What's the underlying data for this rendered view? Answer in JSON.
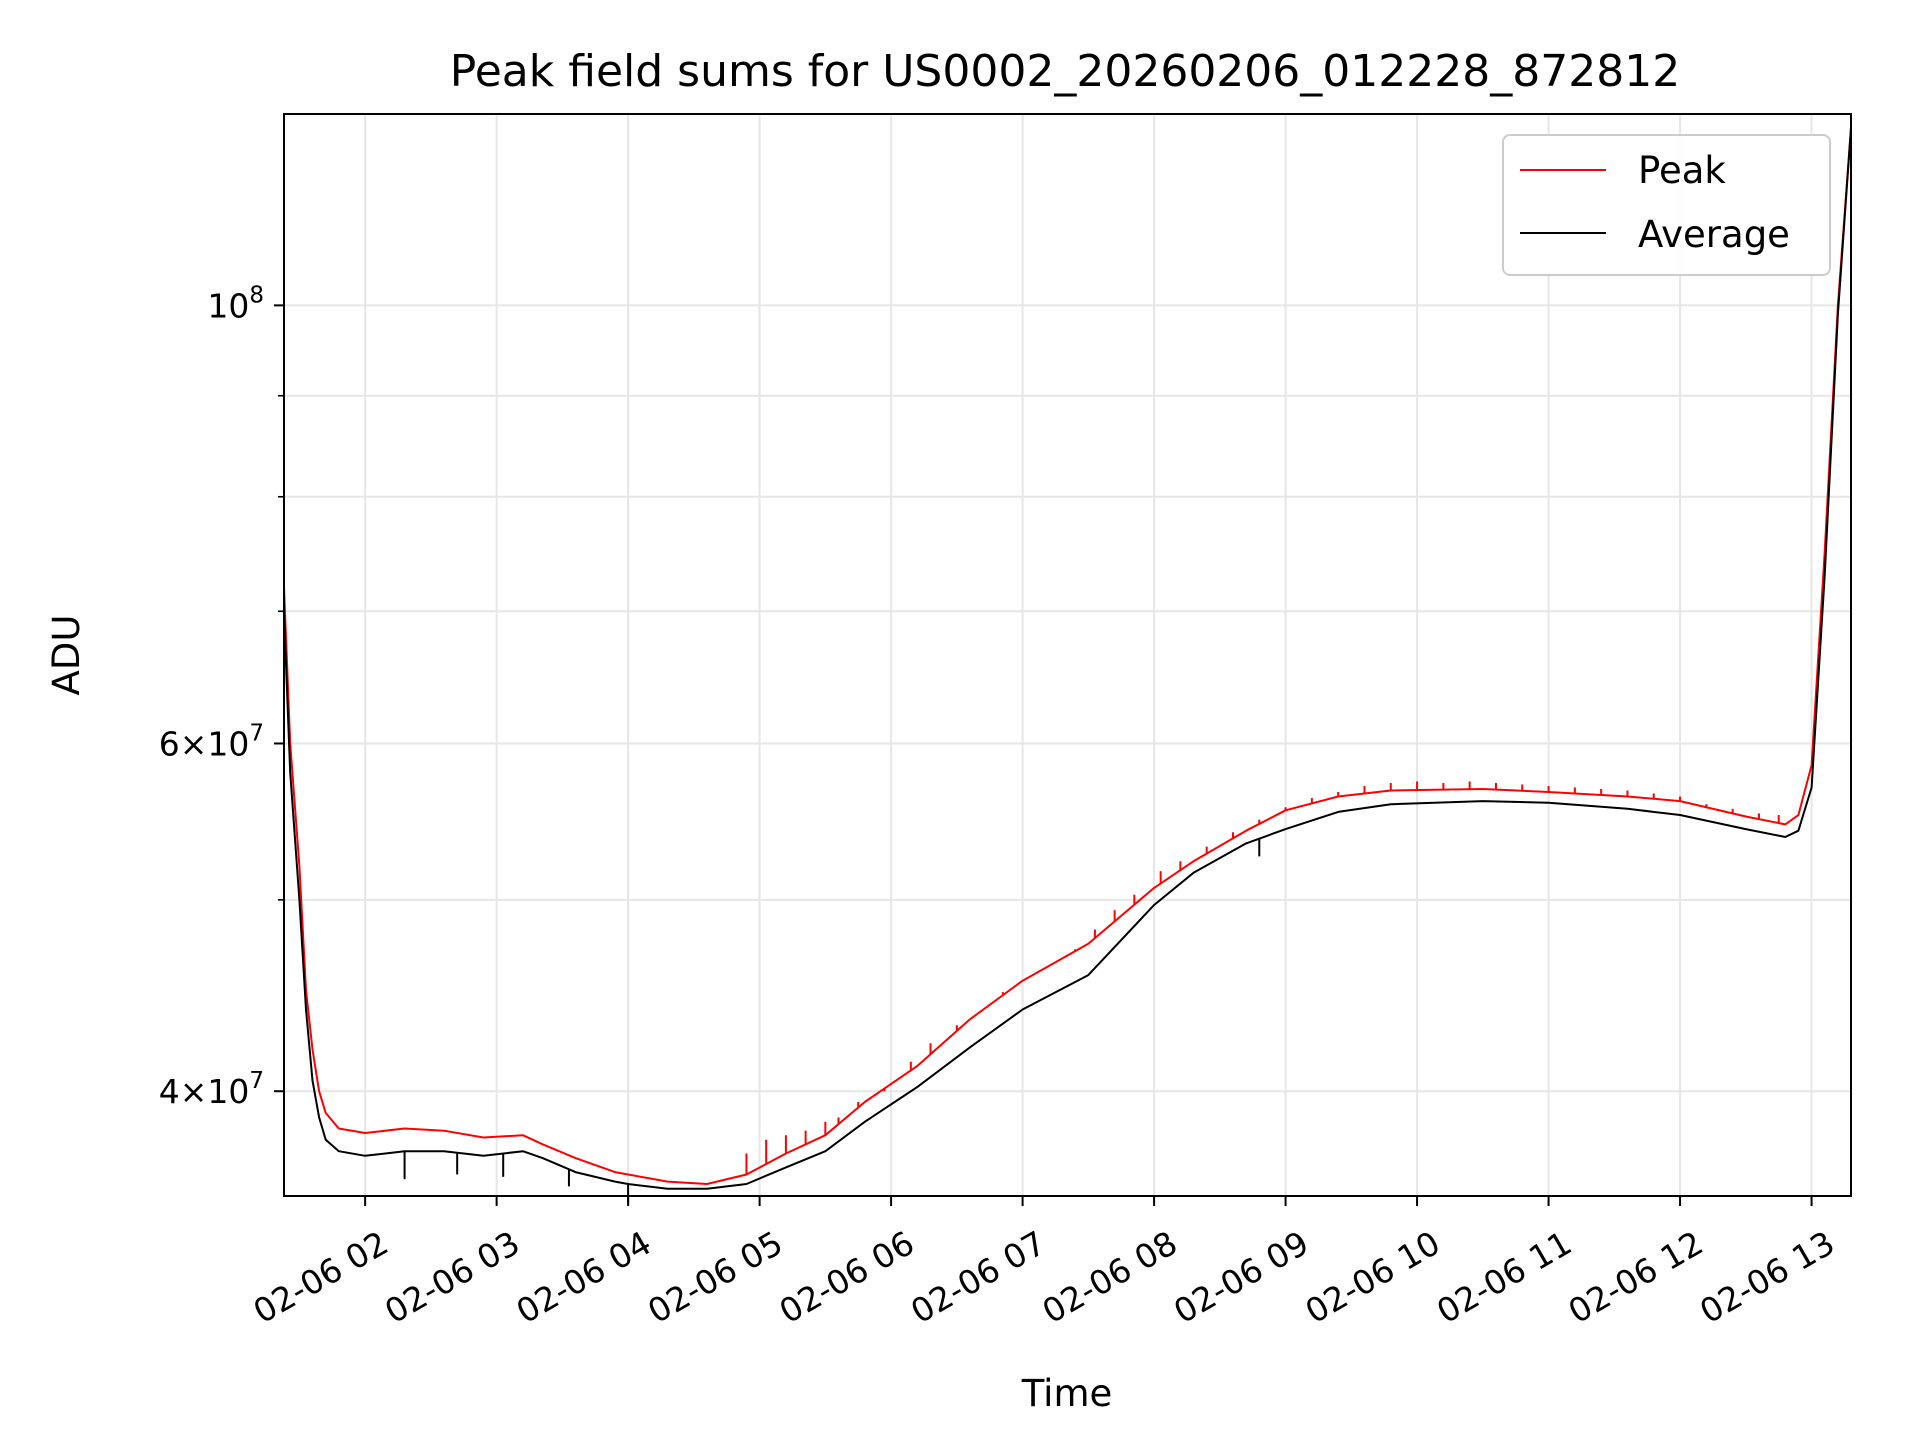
{
  "chart_data": {
    "type": "line",
    "title": "Peak field sums for US0002_20260206_012228_872812",
    "xlabel": "Time",
    "ylabel": "ADU",
    "yscale": "log",
    "x_unit": "hours on 2026-02-06",
    "xlim": [
      1.383,
      13.3
    ],
    "ylim": [
      35400000,
      125000000
    ],
    "grid": true,
    "legend_position": "top-right",
    "x_ticks": [
      {
        "value": 2,
        "label": "02-06 02"
      },
      {
        "value": 3,
        "label": "02-06 03"
      },
      {
        "value": 4,
        "label": "02-06 04"
      },
      {
        "value": 5,
        "label": "02-06 05"
      },
      {
        "value": 6,
        "label": "02-06 06"
      },
      {
        "value": 7,
        "label": "02-06 07"
      },
      {
        "value": 8,
        "label": "02-06 08"
      },
      {
        "value": 9,
        "label": "02-06 09"
      },
      {
        "value": 10,
        "label": "02-06 10"
      },
      {
        "value": 11,
        "label": "02-06 11"
      },
      {
        "value": 12,
        "label": "02-06 12"
      },
      {
        "value": 13,
        "label": "02-06 13"
      }
    ],
    "y_major_ticks": [
      {
        "value": 40000000,
        "base": "4",
        "exp": "7"
      },
      {
        "value": 60000000,
        "base": "6",
        "exp": "7"
      },
      {
        "value": 100000000,
        "base": "10",
        "exp": "8"
      }
    ],
    "y_minor_ticks": [
      50000000,
      70000000,
      80000000,
      90000000
    ],
    "series": [
      {
        "name": "Peak",
        "color": "#ff0000",
        "x": [
          1.383,
          1.43,
          1.5,
          1.55,
          1.6,
          1.65,
          1.7,
          1.8,
          2.0,
          2.3,
          2.6,
          2.9,
          3.2,
          3.35,
          3.6,
          3.9,
          4.0,
          4.3,
          4.6,
          4.9,
          5.2,
          5.5,
          5.8,
          6.2,
          6.6,
          7.0,
          7.5,
          8.0,
          8.3,
          8.7,
          9.0,
          9.4,
          9.8,
          10.5,
          11.0,
          11.6,
          12.0,
          12.5,
          12.8,
          12.9,
          13.0,
          13.1,
          13.2,
          13.3
        ],
        "y": [
          72000000,
          60000000,
          52000000,
          45000000,
          42000000,
          40000000,
          39000000,
          38300000,
          38100000,
          38300000,
          38200000,
          37900000,
          38000000,
          37600000,
          37000000,
          36400000,
          36300000,
          36000000,
          35900000,
          36300000,
          37200000,
          38000000,
          39500000,
          41200000,
          43500000,
          45500000,
          47500000,
          50700000,
          52300000,
          54200000,
          55500000,
          56400000,
          56800000,
          56900000,
          56700000,
          56400000,
          56100000,
          55100000,
          54600000,
          55200000,
          58500000,
          75000000,
          100000000,
          123000000
        ],
        "spikes": [
          {
            "x": 4.9,
            "y": 37200000
          },
          {
            "x": 5.05,
            "y": 37800000
          },
          {
            "x": 5.2,
            "y": 38000000
          },
          {
            "x": 5.35,
            "y": 38200000
          },
          {
            "x": 5.5,
            "y": 38600000
          },
          {
            "x": 5.6,
            "y": 38800000
          },
          {
            "x": 5.75,
            "y": 39500000
          },
          {
            "x": 5.95,
            "y": 40000000
          },
          {
            "x": 6.15,
            "y": 41400000
          },
          {
            "x": 6.3,
            "y": 42300000
          },
          {
            "x": 6.5,
            "y": 43200000
          },
          {
            "x": 6.7,
            "y": 44000000
          },
          {
            "x": 6.85,
            "y": 44900000
          },
          {
            "x": 7.05,
            "y": 45700000
          },
          {
            "x": 7.2,
            "y": 46300000
          },
          {
            "x": 7.4,
            "y": 47200000
          },
          {
            "x": 7.55,
            "y": 48300000
          },
          {
            "x": 7.7,
            "y": 49400000
          },
          {
            "x": 7.85,
            "y": 50300000
          },
          {
            "x": 8.05,
            "y": 51700000
          },
          {
            "x": 8.2,
            "y": 52300000
          },
          {
            "x": 8.4,
            "y": 53200000
          },
          {
            "x": 8.6,
            "y": 54100000
          },
          {
            "x": 8.8,
            "y": 54900000
          },
          {
            "x": 9.0,
            "y": 55700000
          },
          {
            "x": 9.2,
            "y": 56300000
          },
          {
            "x": 9.4,
            "y": 56700000
          },
          {
            "x": 9.6,
            "y": 57100000
          },
          {
            "x": 9.8,
            "y": 57300000
          },
          {
            "x": 10.0,
            "y": 57400000
          },
          {
            "x": 10.2,
            "y": 57300000
          },
          {
            "x": 10.4,
            "y": 57400000
          },
          {
            "x": 10.6,
            "y": 57300000
          },
          {
            "x": 10.8,
            "y": 57200000
          },
          {
            "x": 11.0,
            "y": 57100000
          },
          {
            "x": 11.2,
            "y": 57000000
          },
          {
            "x": 11.4,
            "y": 56900000
          },
          {
            "x": 11.6,
            "y": 56800000
          },
          {
            "x": 11.8,
            "y": 56600000
          },
          {
            "x": 12.0,
            "y": 56400000
          },
          {
            "x": 12.2,
            "y": 55900000
          },
          {
            "x": 12.4,
            "y": 55600000
          },
          {
            "x": 12.6,
            "y": 55300000
          },
          {
            "x": 12.75,
            "y": 55200000
          }
        ]
      },
      {
        "name": "Average",
        "color": "#000000",
        "x": [
          1.383,
          1.43,
          1.5,
          1.55,
          1.6,
          1.65,
          1.7,
          1.8,
          2.0,
          2.3,
          2.6,
          2.9,
          3.2,
          3.35,
          3.6,
          3.9,
          4.0,
          4.3,
          4.6,
          4.9,
          5.2,
          5.5,
          5.8,
          6.2,
          6.6,
          7.0,
          7.5,
          8.0,
          8.3,
          8.7,
          9.0,
          9.4,
          9.8,
          10.5,
          11.0,
          11.6,
          12.0,
          12.5,
          12.8,
          12.9,
          13.0,
          13.1,
          13.2,
          13.3
        ],
        "y": [
          70000000,
          58000000,
          50000000,
          44000000,
          40500000,
          38800000,
          37800000,
          37300000,
          37100000,
          37300000,
          37300000,
          37100000,
          37300000,
          37000000,
          36400000,
          36000000,
          35900000,
          35700000,
          35700000,
          35900000,
          36600000,
          37300000,
          38600000,
          40200000,
          42100000,
          44000000,
          45800000,
          49700000,
          51600000,
          53400000,
          54300000,
          55400000,
          55900000,
          56100000,
          56000000,
          55600000,
          55200000,
          54300000,
          53800000,
          54200000,
          57000000,
          73000000,
          99000000,
          123000000
        ],
        "dips": [
          {
            "x": 2.3,
            "y": 36100000
          },
          {
            "x": 2.7,
            "y": 36300000
          },
          {
            "x": 3.05,
            "y": 36200000
          },
          {
            "x": 3.55,
            "y": 35800000
          },
          {
            "x": 4.0,
            "y": 35100000
          },
          {
            "x": 8.8,
            "y": 52600000
          }
        ]
      }
    ]
  }
}
